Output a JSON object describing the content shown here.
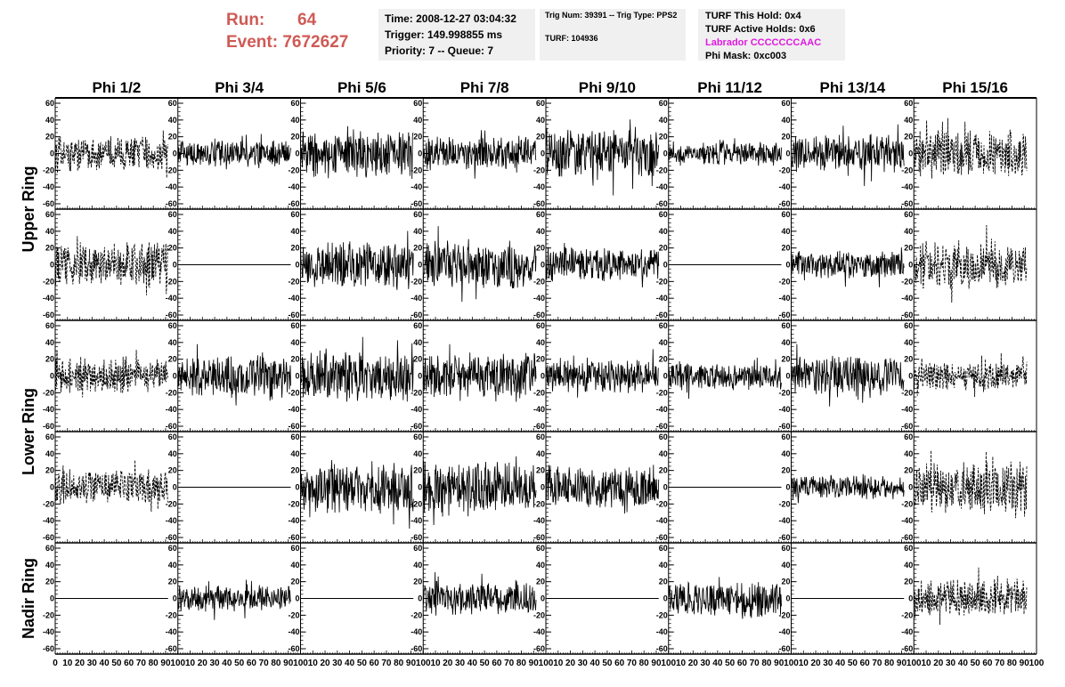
{
  "header": {
    "run_label": "Run:",
    "run_value": "64",
    "event_label": "Event:",
    "event_value": "7672627",
    "time": "Time: 2008-12-27 03:04:32",
    "trigger": "Trigger: 149.998855 ms",
    "priority": "Priority: 7 -- Queue: 7",
    "trig_num": "Trig Num: 39391 -- Trig Type: PPS2",
    "turf": "TURF: 104936",
    "turf_this_hold": "TURF This Hold: 0x4",
    "turf_active_holds": "TURF Active Holds: 0x6",
    "labrador": "Labrador CCCCCCCAAC",
    "phi_mask": "Phi Mask: 0xc003"
  },
  "colors": {
    "run_text": "#cf5a55",
    "labrador_text": "#e019e0",
    "box_bg": "#f0f0f0"
  },
  "chart_data": {
    "type": "line",
    "columns": [
      "Phi 1/2",
      "Phi 3/4",
      "Phi 5/6",
      "Phi 7/8",
      "Phi 9/10",
      "Phi 11/12",
      "Phi 13/14",
      "Phi 15/16"
    ],
    "ring_labels": [
      "Upper Ring",
      "Lower Ring",
      "Nadir Ring"
    ],
    "x_ticks": [
      "0",
      "10",
      "20",
      "30",
      "40",
      "50",
      "60",
      "70",
      "80",
      "90",
      "100"
    ],
    "y_ticks": [
      "60",
      "40",
      "20",
      "0",
      "-20",
      "-40",
      "-60"
    ],
    "xlim": [
      0,
      100
    ],
    "ylim": [
      -60,
      60
    ],
    "panels": [
      [
        {
          "style": "dashed",
          "amp": 15
        },
        {
          "style": "solid",
          "amp": 12
        },
        {
          "style": "solid",
          "amp": 20
        },
        {
          "style": "solid",
          "amp": 15
        },
        {
          "style": "solid",
          "amp": 22
        },
        {
          "style": "solid",
          "amp": 10
        },
        {
          "style": "solid",
          "amp": 16
        },
        {
          "style": "dashed",
          "amp": 20
        }
      ],
      [
        {
          "style": "dashed",
          "amp": 20
        },
        {
          "style": "flat",
          "amp": 0
        },
        {
          "style": "solid",
          "amp": 20
        },
        {
          "style": "solid",
          "amp": 20
        },
        {
          "style": "solid",
          "amp": 15
        },
        {
          "style": "flat",
          "amp": 0
        },
        {
          "style": "solid",
          "amp": 12
        },
        {
          "style": "dashed",
          "amp": 20
        }
      ],
      [
        {
          "style": "dashed",
          "amp": 15
        },
        {
          "style": "solid",
          "amp": 18
        },
        {
          "style": "solid",
          "amp": 22
        },
        {
          "style": "solid",
          "amp": 20
        },
        {
          "style": "solid",
          "amp": 14
        },
        {
          "style": "solid",
          "amp": 12
        },
        {
          "style": "solid",
          "amp": 18
        },
        {
          "style": "dashed",
          "amp": 12
        }
      ],
      [
        {
          "style": "dashed",
          "amp": 15
        },
        {
          "style": "flat",
          "amp": 0
        },
        {
          "style": "solid",
          "amp": 22
        },
        {
          "style": "solid",
          "amp": 22
        },
        {
          "style": "solid",
          "amp": 18
        },
        {
          "style": "flat",
          "amp": 0
        },
        {
          "style": "solid",
          "amp": 10
        },
        {
          "style": "dashed",
          "amp": 22
        }
      ],
      [
        {
          "style": "flat",
          "amp": 0
        },
        {
          "style": "solid",
          "amp": 12
        },
        {
          "style": "flat",
          "amp": 0
        },
        {
          "style": "solid",
          "amp": 14
        },
        {
          "style": "flat",
          "amp": 0
        },
        {
          "style": "solid",
          "amp": 16
        },
        {
          "style": "flat",
          "amp": 0
        },
        {
          "style": "dashed",
          "amp": 16
        }
      ]
    ]
  }
}
